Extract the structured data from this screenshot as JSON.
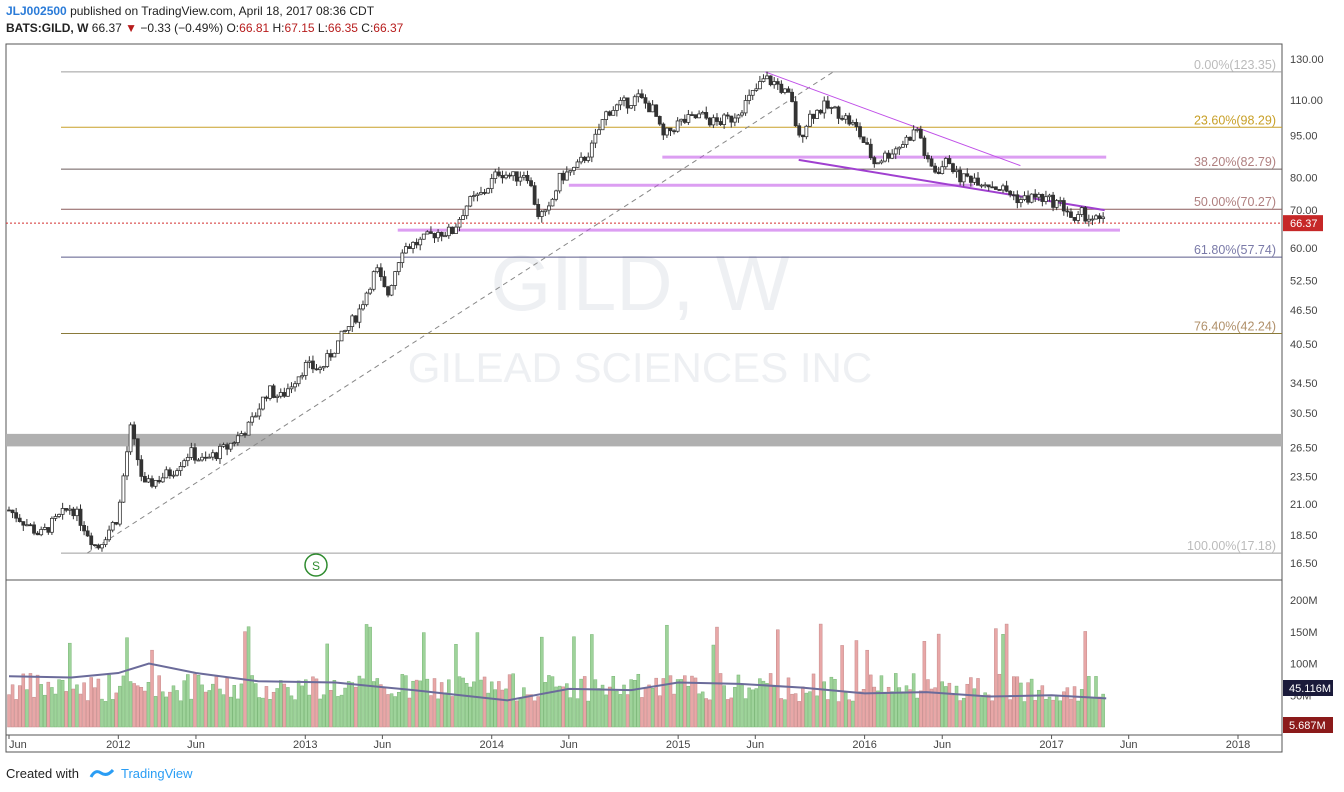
{
  "header": {
    "author": "JLJ002500",
    "published": "published on TradingView.com, April 18, 2017 08:36 CDT",
    "symbol": "BATS:GILD, W",
    "last": "66.37",
    "change": "−0.33 (−0.49%)",
    "o_label": "O:",
    "o": "66.81",
    "h_label": "H:",
    "h": "67.15",
    "l_label": "L:",
    "l": "66.35",
    "c_label": "C:",
    "c": "66.37"
  },
  "watermark": {
    "symbol": "GILD, W",
    "name": "GILEAD SCIENCES INC"
  },
  "footer": {
    "created_with": "Created with",
    "brand": "TradingView"
  },
  "colors": {
    "up": "#26a69a",
    "down": "#ef5350",
    "vol_up": "#9ed39a",
    "vol_down": "#e8a7a7",
    "purple": "#c050e8",
    "fib_gold": "#c8a028",
    "gray_band": "#b0b0b0"
  },
  "chart_data": {
    "type": "candlestick",
    "timeframe": "W",
    "price_axis": {
      "scale": "log",
      "ticks": [
        130,
        110,
        95,
        80,
        70,
        60,
        52.5,
        46.5,
        40.5,
        34.5,
        30.5,
        26.5,
        23.5,
        21,
        18.5,
        16.5
      ],
      "tick_labels": [
        "130.00",
        "110.00",
        "95.00",
        "80.00",
        "70.00",
        "60.00",
        "52.50",
        "46.50",
        "40.50",
        "34.50",
        "30.50",
        "26.50",
        "23.50",
        "21.00",
        "18.50",
        "16.50"
      ]
    },
    "time_axis": {
      "labels": [
        "Jun",
        "2012",
        "Jun",
        "2013",
        "Jun",
        "2014",
        "Jun",
        "2015",
        "Jun",
        "2016",
        "Jun",
        "2017",
        "Jun",
        "2018"
      ],
      "dates": [
        "2011-06",
        "2012-01",
        "2012-06",
        "2013-01",
        "2013-06",
        "2014-01",
        "2014-06",
        "2015-01",
        "2015-06",
        "2016-01",
        "2016-06",
        "2017-01",
        "2017-06",
        "2018-01"
      ]
    },
    "fibonacci": [
      {
        "label": "0.00%(123.35)",
        "level": 0.0,
        "price": 123.35
      },
      {
        "label": "23.60%(98.29)",
        "level": 0.236,
        "price": 98.29
      },
      {
        "label": "38.20%(82.79)",
        "level": 0.382,
        "price": 82.79
      },
      {
        "label": "50.00%(70.27)",
        "level": 0.5,
        "price": 70.27
      },
      {
        "label": "61.80%(57.74)",
        "level": 0.618,
        "price": 57.74
      },
      {
        "label": "76.40%(42.24)",
        "level": 0.764,
        "price": 42.24
      },
      {
        "label": "100.00%(17.18)",
        "level": 1.0,
        "price": 17.18
      }
    ],
    "last_price": 66.37,
    "last_price_label": "66.37",
    "price_path": [
      [
        "2011-06-01",
        20.5
      ],
      [
        "2011-08-01",
        18.5
      ],
      [
        "2011-10-01",
        20.8
      ],
      [
        "2011-11-20",
        17.5
      ],
      [
        "2012-01-01",
        20.0
      ],
      [
        "2012-01-25",
        28.5
      ],
      [
        "2012-02-20",
        22.5
      ],
      [
        "2012-04-15",
        24.0
      ],
      [
        "2012-05-20",
        26.0
      ],
      [
        "2012-06-15",
        25.0
      ],
      [
        "2012-08-01",
        26.5
      ],
      [
        "2012-09-15",
        29.0
      ],
      [
        "2012-10-20",
        33.5
      ],
      [
        "2012-11-15",
        32.5
      ],
      [
        "2013-01-01",
        37.0
      ],
      [
        "2013-02-01",
        36.5
      ],
      [
        "2013-03-01",
        40.0
      ],
      [
        "2013-04-15",
        46.0
      ],
      [
        "2013-05-20",
        55.0
      ],
      [
        "2013-06-10",
        49.0
      ],
      [
        "2013-07-10",
        60.0
      ],
      [
        "2013-08-15",
        61.5
      ],
      [
        "2013-09-15",
        64.0
      ],
      [
        "2013-10-15",
        64.0
      ],
      [
        "2013-11-15",
        72.0
      ],
      [
        "2013-12-15",
        75.0
      ],
      [
        "2014-01-15",
        82.0
      ],
      [
        "2014-02-15",
        80.0
      ],
      [
        "2014-03-10",
        82.0
      ],
      [
        "2014-04-01",
        69.0
      ],
      [
        "2014-04-20",
        68.5
      ],
      [
        "2014-05-15",
        80.0
      ],
      [
        "2014-06-15",
        83.0
      ],
      [
        "2014-07-15",
        90.0
      ],
      [
        "2014-08-15",
        105.0
      ],
      [
        "2014-09-15",
        108.0
      ],
      [
        "2014-10-15",
        111.0
      ],
      [
        "2014-11-15",
        105.0
      ],
      [
        "2014-12-01",
        94.0
      ],
      [
        "2015-01-01",
        100.0
      ],
      [
        "2015-02-15",
        103.0
      ],
      [
        "2015-03-15",
        100.0
      ],
      [
        "2015-04-15",
        102.0
      ],
      [
        "2015-05-15",
        109.0
      ],
      [
        "2015-06-20",
        120.0
      ],
      [
        "2015-07-15",
        117.0
      ],
      [
        "2015-08-10",
        110.0
      ],
      [
        "2015-08-25",
        93.0
      ],
      [
        "2015-09-15",
        103.0
      ],
      [
        "2015-10-15",
        107.0
      ],
      [
        "2015-11-15",
        104.0
      ],
      [
        "2015-12-15",
        98.0
      ],
      [
        "2016-01-20",
        85.0
      ],
      [
        "2016-02-15",
        88.0
      ],
      [
        "2016-03-15",
        92.0
      ],
      [
        "2016-04-15",
        98.0
      ],
      [
        "2016-05-01",
        85.0
      ],
      [
        "2016-05-20",
        82.0
      ],
      [
        "2016-06-15",
        86.0
      ],
      [
        "2016-07-01",
        80.0
      ],
      [
        "2016-08-01",
        80.0
      ],
      [
        "2016-09-01",
        78.0
      ],
      [
        "2016-10-01",
        76.0
      ],
      [
        "2016-11-01",
        73.0
      ],
      [
        "2016-12-01",
        74.0
      ],
      [
        "2017-01-15",
        72.0
      ],
      [
        "2017-02-01",
        70.0
      ],
      [
        "2017-02-15",
        66.0
      ],
      [
        "2017-03-01",
        69.0
      ],
      [
        "2017-04-01",
        67.0
      ],
      [
        "2017-04-18",
        66.37
      ]
    ],
    "volume": {
      "ticks": [
        200,
        150,
        100,
        50
      ],
      "tick_labels": [
        "200M",
        "150M",
        "100M",
        "50M"
      ],
      "ma_label": "45.116M",
      "last_label": "5.687M",
      "ma_path": [
        [
          "2011-06-01",
          80
        ],
        [
          "2011-10-01",
          78
        ],
        [
          "2012-01-01",
          85
        ],
        [
          "2012-03-01",
          100
        ],
        [
          "2012-06-01",
          85
        ],
        [
          "2012-10-01",
          72
        ],
        [
          "2013-03-01",
          70
        ],
        [
          "2013-08-01",
          58
        ],
        [
          "2013-11-01",
          50
        ],
        [
          "2014-02-01",
          42
        ],
        [
          "2014-06-01",
          60
        ],
        [
          "2014-10-01",
          58
        ],
        [
          "2015-01-01",
          70
        ],
        [
          "2015-05-01",
          68
        ],
        [
          "2015-09-01",
          62
        ],
        [
          "2016-01-01",
          53
        ],
        [
          "2016-05-01",
          55
        ],
        [
          "2016-09-01",
          48
        ],
        [
          "2017-01-01",
          50
        ],
        [
          "2017-04-18",
          45
        ]
      ]
    },
    "annotations": {
      "trendline_dashed": [
        [
          "2011-11-01",
          17.18
        ],
        [
          "2015-11-01",
          123.35
        ]
      ],
      "purple_top": [
        [
          "2015-06-20",
          123.35
        ],
        [
          "2016-11-01",
          84.0
        ]
      ],
      "purple_channel": [
        [
          "2015-08-25",
          86.0
        ],
        [
          "2017-04-15",
          70.0
        ]
      ],
      "purple_hlines": [
        {
          "price": 87.0,
          "from": "2014-12-01",
          "to": "2017-04-18"
        },
        {
          "price": 77.5,
          "from": "2014-06-01",
          "to": "2016-08-01"
        },
        {
          "price": 64.5,
          "from": "2013-07-01",
          "to": "2017-05-15"
        }
      ],
      "gray_band": [
        26.6,
        28.0
      ],
      "event_marker": {
        "date": "2013-02-01",
        "price": 17.5,
        "label": "S"
      }
    }
  }
}
